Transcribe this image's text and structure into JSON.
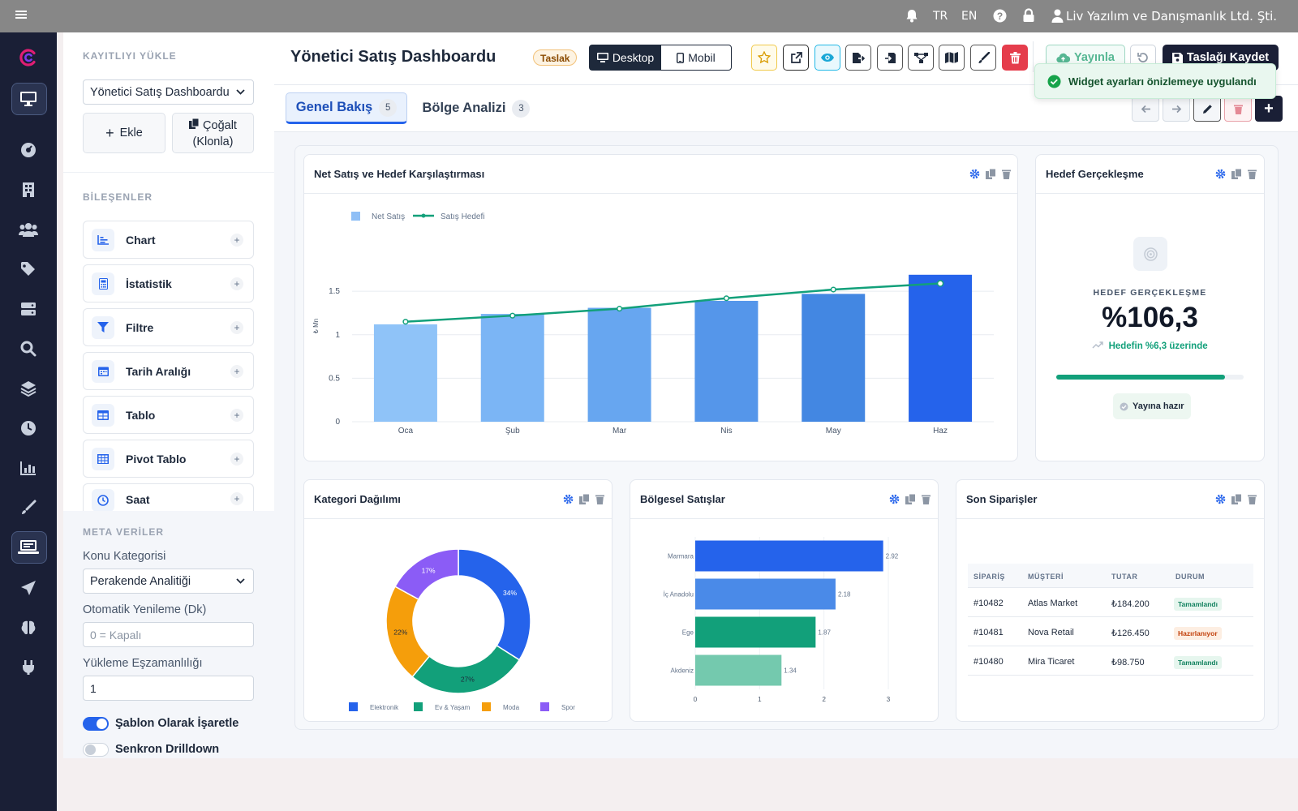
{
  "topbar": {
    "lang_tr": "TR",
    "lang_en": "EN",
    "company": "Liv Yazılım ve Danışmanlık Ltd. Şti."
  },
  "panel": {
    "load_label": "KAYITLIYI YÜKLE",
    "load_select": "Yönetici Satış Dashboardu",
    "add_label": "Ekle",
    "clone_label1": "Çoğalt",
    "clone_label2": "(Klonla)",
    "components_label": "BİLEŞENLER",
    "components": [
      {
        "label": "Chart",
        "icon": "chart-icon"
      },
      {
        "label": "İstatistik",
        "icon": "calculator-icon"
      },
      {
        "label": "Filtre",
        "icon": "filter-icon"
      },
      {
        "label": "Tarih Aralığı",
        "icon": "calendar-icon"
      },
      {
        "label": "Tablo",
        "icon": "table-icon"
      },
      {
        "label": "Pivot Tablo",
        "icon": "grid-icon"
      },
      {
        "label": "Saat",
        "icon": "clock-icon"
      }
    ],
    "meta_label": "META VERİLER",
    "category_label": "Konu Kategorisi",
    "category_value": "Perakende Analitiği",
    "refresh_label": "Otomatik Yenileme (Dk)",
    "refresh_placeholder": "0 = Kapalı",
    "concurrency_label": "Yükleme Eşzamanlılığı",
    "concurrency_value": "1",
    "template_toggle": "Şablon Olarak İşaretle",
    "template_on": true,
    "sync_toggle": "Senkron Drilldown",
    "sync_on": false
  },
  "header": {
    "title": "Yönetici Satış Dashboardu",
    "draft_badge": "Taslak",
    "desktop_label": "Desktop",
    "mobile_label": "Mobil",
    "publish_label": "Yayınla",
    "save_label": "Taslağı Kaydet"
  },
  "toast": "Widget ayarları önizlemeye uygulandı",
  "tabs": [
    {
      "label": "Genel Bakış",
      "count": "5",
      "active": true
    },
    {
      "label": "Bölge Analizi",
      "count": "3",
      "active": false
    }
  ],
  "widgets": {
    "net_sales": {
      "title": "Net Satış ve Hedef Karşılaştırması"
    },
    "goal": {
      "title": "Hedef Gerçekleşme",
      "label": "HEDEF GERÇEKLEŞME",
      "value": "%106,3",
      "sub": "Hedefin %6,3 üzerinde",
      "progress": 0.9,
      "ready": "Yayına hazır"
    },
    "category": {
      "title": "Kategori Dağılımı"
    },
    "regional": {
      "title": "Bölgesel Satışlar"
    },
    "orders": {
      "title": "Son Siparişler",
      "columns": [
        "SİPARİŞ",
        "MÜŞTERİ",
        "TUTAR",
        "DURUM"
      ],
      "rows": [
        {
          "id": "#10482",
          "customer": "Atlas Market",
          "amount": "₺184.200",
          "status": "Tamamlandı",
          "state": "done"
        },
        {
          "id": "#10481",
          "customer": "Nova Retail",
          "amount": "₺126.450",
          "status": "Hazırlanıyor",
          "state": "pending"
        },
        {
          "id": "#10480",
          "customer": "Mira Ticaret",
          "amount": "₺98.750",
          "status": "Tamamlandı",
          "state": "done"
        }
      ]
    }
  },
  "colors": {
    "accent": "#2563eb",
    "green": "#12a07a",
    "dark": "#1a1f36"
  },
  "chart_data": [
    {
      "type": "bar",
      "categories": [
        "Oca",
        "Şub",
        "Mar",
        "Nis",
        "May",
        "Haz"
      ],
      "series": [
        {
          "name": "Net Satış",
          "type": "bar",
          "values": [
            1.12,
            1.24,
            1.31,
            1.39,
            1.47,
            1.69
          ]
        },
        {
          "name": "Satış Hedefi",
          "type": "line",
          "values": [
            1.15,
            1.22,
            1.3,
            1.42,
            1.52,
            1.59
          ]
        }
      ],
      "ylabel": "₺ Mn",
      "yticks": [
        "0",
        "0.5",
        "1",
        "1.5"
      ],
      "ylim": [
        0,
        1.8
      ],
      "legend": "top-left",
      "grid": true
    },
    {
      "type": "pie",
      "labels": [
        "Elektronik",
        "Ev & Yaşam",
        "Moda",
        "Spor"
      ],
      "values": [
        34,
        27,
        22,
        17
      ],
      "value_labels": [
        "34%",
        "27%",
        "22%",
        "17%"
      ],
      "colors": [
        "#2563eb",
        "#12a07a",
        "#f59e0b",
        "#8b5cf6"
      ],
      "legend": "bottom"
    },
    {
      "type": "bar",
      "orientation": "horizontal",
      "categories": [
        "Marmara",
        "İç Anadolu",
        "Ege",
        "Akdeniz"
      ],
      "values": [
        2.92,
        2.18,
        1.87,
        1.34
      ],
      "value_labels": [
        "2.92",
        "2.18",
        "1.87",
        "1.34"
      ],
      "xticks": [
        "0",
        "1",
        "2",
        "3"
      ],
      "xlim": [
        0,
        3
      ],
      "colors": [
        "#2563eb",
        "#4a8ae8",
        "#12a07a",
        "#74c9ae"
      ]
    }
  ]
}
